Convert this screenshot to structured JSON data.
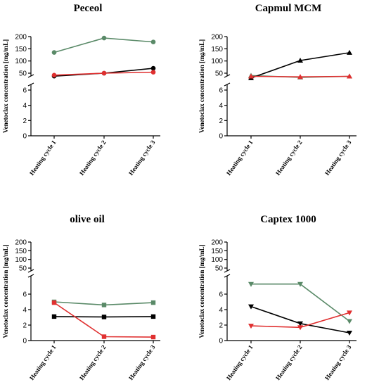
{
  "colors": {
    "green": "#5a8a68",
    "black": "#000000",
    "red": "#e03030"
  },
  "chart_data": [
    {
      "type": "line",
      "title": "Peceol",
      "ylabel": "Venetoclax concentration [mg/mL]",
      "categories": [
        "Heating cycle 1",
        "Heating cycle 2",
        "Heating cycle 3"
      ],
      "axis": "split-upper",
      "upper_ticks": [
        50,
        100,
        150,
        200
      ],
      "lower_ticks": [
        0,
        2,
        4,
        6
      ],
      "marker": "circle",
      "series": [
        {
          "color": "green",
          "values": [
            135,
            194,
            178
          ]
        },
        {
          "color": "black",
          "values": [
            38,
            50,
            70
          ]
        },
        {
          "color": "red",
          "values": [
            42,
            50,
            54
          ]
        }
      ]
    },
    {
      "type": "line",
      "title": "Capmul MCM",
      "ylabel": "Venetoclax concentration [mg/mL]",
      "categories": [
        "Heating cycle 1",
        "Heating cycle 2",
        "Heating cycle 3"
      ],
      "axis": "split-upper",
      "upper_ticks": [
        50,
        100,
        150,
        200
      ],
      "lower_ticks": [
        0,
        2,
        4,
        6
      ],
      "marker": "triangle-up",
      "series": [
        {
          "color": "green",
          "values": [
            40,
            33,
            37
          ]
        },
        {
          "color": "black",
          "values": [
            30,
            102,
            134
          ]
        },
        {
          "color": "red",
          "values": [
            37,
            35,
            37
          ]
        }
      ]
    },
    {
      "type": "line",
      "title": "olive oil",
      "ylabel": "Venetoclax concentration [mg/mL]",
      "categories": [
        "Heating cycle 1",
        "Heating cycle 2",
        "Heating cycle 3"
      ],
      "axis": "split-lower",
      "upper_ticks": [
        50,
        100,
        150,
        200
      ],
      "lower_ticks": [
        0,
        2,
        4,
        6
      ],
      "marker": "square",
      "series": [
        {
          "color": "green",
          "values": [
            5.0,
            4.6,
            4.9
          ]
        },
        {
          "color": "black",
          "values": [
            3.1,
            3.05,
            3.1
          ]
        },
        {
          "color": "red",
          "values": [
            4.9,
            0.5,
            0.45
          ]
        }
      ]
    },
    {
      "type": "line",
      "title": "Captex 1000",
      "ylabel": "Venetoclax concentration [mg/mL]",
      "categories": [
        "Heating cycle 1",
        "Heating cycle 2",
        "Heating cycle 3"
      ],
      "axis": "split-lower",
      "upper_ticks": [
        50,
        100,
        150,
        200
      ],
      "lower_ticks": [
        0,
        2,
        4,
        6
      ],
      "marker": "triangle-down",
      "series": [
        {
          "color": "green",
          "values": [
            7.3,
            7.3,
            2.5
          ]
        },
        {
          "color": "black",
          "values": [
            4.4,
            2.2,
            1.0
          ]
        },
        {
          "color": "red",
          "values": [
            1.9,
            1.7,
            3.6
          ]
        }
      ]
    }
  ]
}
